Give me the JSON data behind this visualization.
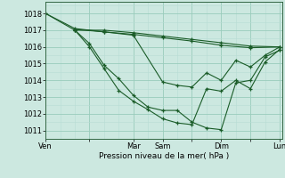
{
  "bg_color": "#cce8e0",
  "grid_major_color": "#99ccbb",
  "grid_minor_color": "#b8ddd4",
  "line_color": "#1a5c28",
  "xlabel": "Pression niveau de la mer( hPa )",
  "ylim": [
    1010.5,
    1018.7
  ],
  "yticks": [
    1011,
    1012,
    1013,
    1014,
    1015,
    1016,
    1017,
    1018
  ],
  "xtick_labels": [
    "Ven",
    "",
    "Mar",
    "Sam",
    "",
    "Dim",
    "",
    "Lun"
  ],
  "xtick_positions": [
    0,
    18,
    36,
    48,
    60,
    72,
    84,
    96
  ],
  "total_hours": 97,
  "series": [
    {
      "x": [
        0,
        12,
        24,
        36,
        48,
        60,
        72,
        84,
        96
      ],
      "y": [
        1018.0,
        1017.0,
        1017.0,
        1016.85,
        1016.65,
        1016.45,
        1016.25,
        1016.05,
        1016.0
      ]
    },
    {
      "x": [
        0,
        12,
        24,
        36,
        48,
        60,
        72,
        84,
        96
      ],
      "y": [
        1018.0,
        1017.1,
        1016.9,
        1016.75,
        1016.55,
        1016.35,
        1016.1,
        1015.95,
        1016.0
      ]
    },
    {
      "x": [
        12,
        24,
        36,
        48,
        54,
        60,
        66,
        72,
        78,
        84,
        90,
        96
      ],
      "y": [
        1017.05,
        1016.9,
        1016.7,
        1013.9,
        1013.7,
        1013.6,
        1014.45,
        1014.0,
        1015.2,
        1014.8,
        1015.5,
        1016.0
      ]
    },
    {
      "x": [
        12,
        18,
        24,
        30,
        36,
        42,
        48,
        54,
        60,
        66,
        72,
        78,
        84,
        90,
        96
      ],
      "y": [
        1017.0,
        1016.2,
        1014.9,
        1014.1,
        1013.1,
        1012.4,
        1012.2,
        1012.2,
        1011.5,
        1011.15,
        1011.05,
        1013.85,
        1014.0,
        1015.4,
        1015.8
      ]
    },
    {
      "x": [
        12,
        18,
        24,
        30,
        36,
        42,
        48,
        54,
        60,
        66,
        72,
        78,
        84,
        90,
        96
      ],
      "y": [
        1017.0,
        1016.0,
        1014.7,
        1013.4,
        1012.75,
        1012.25,
        1011.7,
        1011.45,
        1011.35,
        1013.5,
        1013.35,
        1014.0,
        1013.5,
        1015.1,
        1015.85
      ]
    }
  ]
}
